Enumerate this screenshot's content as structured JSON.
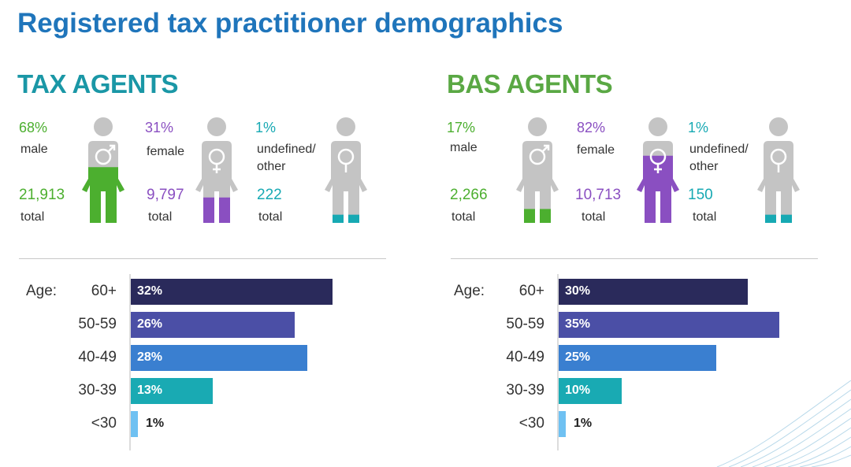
{
  "title": "Registered tax practitioner demographics",
  "colors": {
    "title": "#1f75bb",
    "tax_heading": "#1a97a6",
    "bas_heading": "#5aa844",
    "male_green": "#4caf2f",
    "female_purple": "#8a4fc1",
    "other_teal": "#17a9b3",
    "figure_gray": "#c4c4c4",
    "bar_60": "#2a2a5b",
    "bar_50": "#4b4fa6",
    "bar_40": "#3a7fd0",
    "bar_30": "#19aab3",
    "bar_u30": "#6fc1f2"
  },
  "panels": [
    {
      "heading": "TAX AGENTS",
      "groups": [
        {
          "pct": "68%",
          "label": "male",
          "total": "21,913",
          "total_label": "total",
          "icon": "male-figure-icon",
          "fill_fraction": 0.68
        },
        {
          "pct": "31%",
          "label": "female",
          "total": "9,797",
          "total_label": "total",
          "icon": "female-figure-icon",
          "fill_fraction": 0.31
        },
        {
          "pct": "1%",
          "label": "undefined/\nother",
          "total": "222",
          "total_label": "total",
          "icon": "other-figure-icon",
          "fill_fraction": 0.01
        }
      ],
      "age_label": "Age:",
      "ages": [
        {
          "category": "60+",
          "value": 32,
          "label": "32%"
        },
        {
          "category": "50-59",
          "value": 26,
          "label": "26%"
        },
        {
          "category": "40-49",
          "value": 28,
          "label": "28%"
        },
        {
          "category": "30-39",
          "value": 13,
          "label": "13%"
        },
        {
          "category": "<30",
          "value": 1,
          "label": "1%"
        }
      ]
    },
    {
      "heading": "BAS AGENTS",
      "groups": [
        {
          "pct": "17%",
          "label": "male",
          "total": "2,266",
          "total_label": "total",
          "icon": "male-figure-icon",
          "fill_fraction": 0.17
        },
        {
          "pct": "82%",
          "label": "female",
          "total": "10,713",
          "total_label": "total",
          "icon": "female-figure-icon",
          "fill_fraction": 0.82
        },
        {
          "pct": "1%",
          "label": "undefined/\nother",
          "total": "150",
          "total_label": "total",
          "icon": "other-figure-icon",
          "fill_fraction": 0.01
        }
      ],
      "age_label": "Age:",
      "ages": [
        {
          "category": "60+",
          "value": 30,
          "label": "30%"
        },
        {
          "category": "50-59",
          "value": 35,
          "label": "35%"
        },
        {
          "category": "40-49",
          "value": 25,
          "label": "25%"
        },
        {
          "category": "30-39",
          "value": 10,
          "label": "10%"
        },
        {
          "category": "<30",
          "value": 1,
          "label": "1%"
        }
      ]
    }
  ]
}
